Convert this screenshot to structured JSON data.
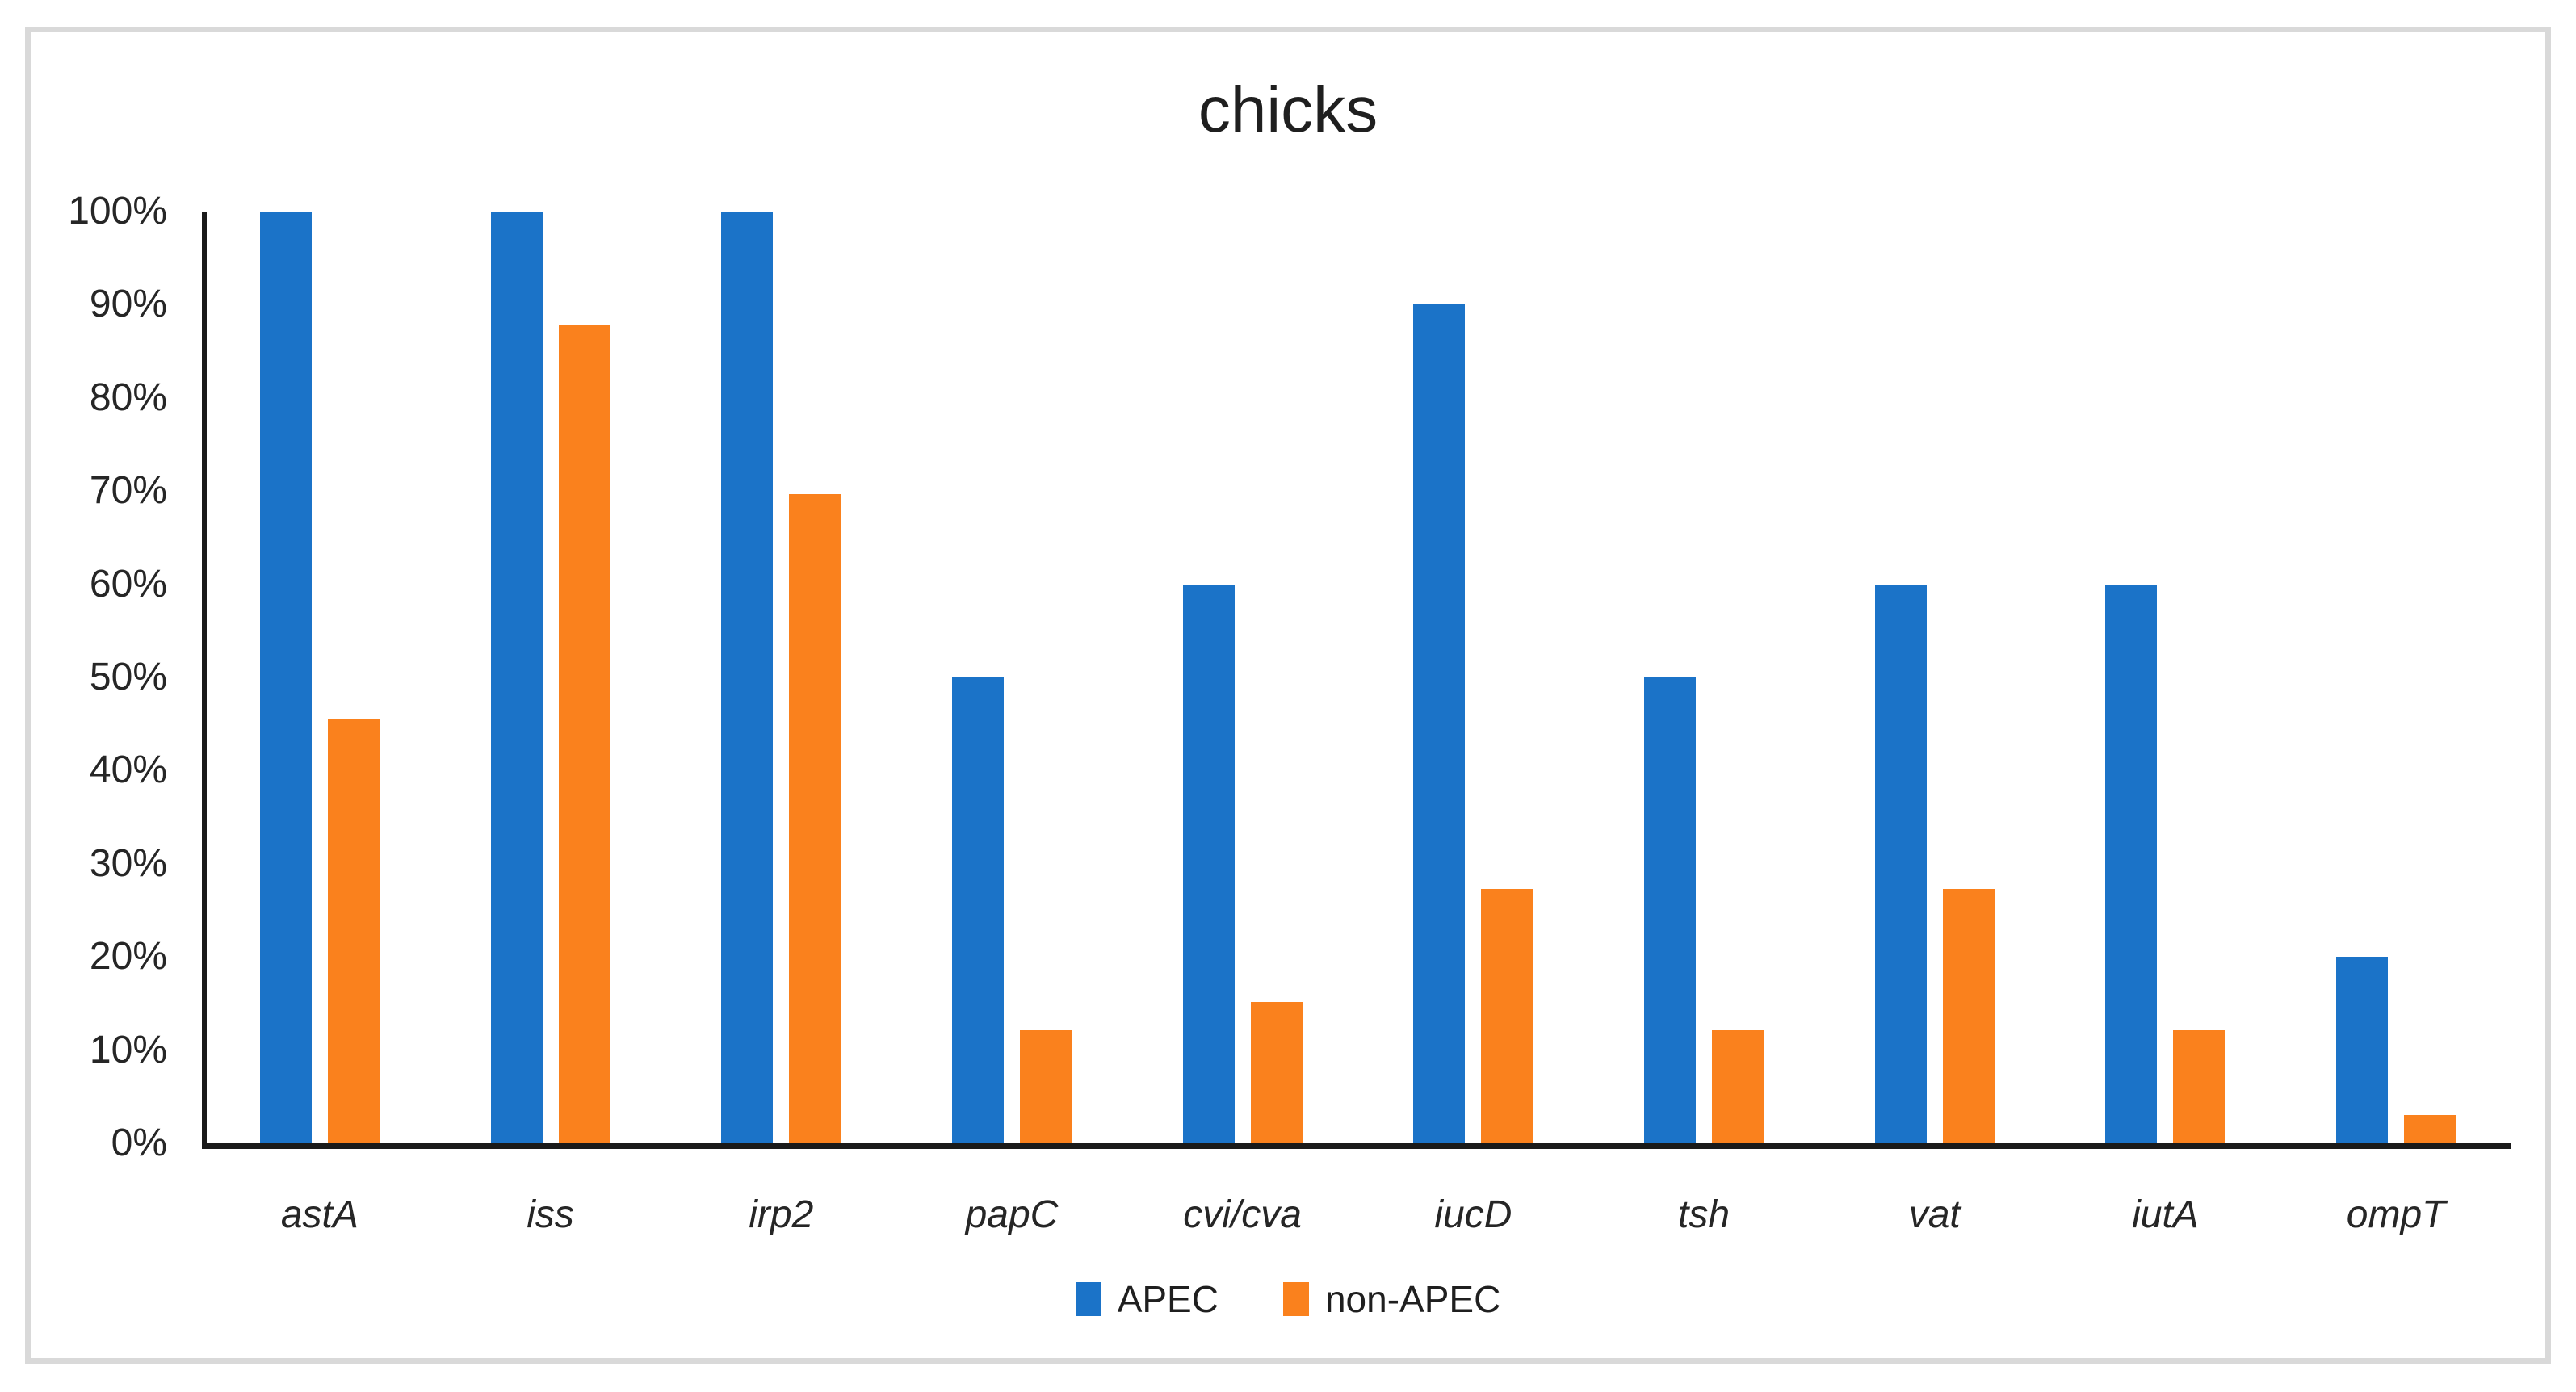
{
  "figure": {
    "title": "chicks",
    "background_color": "#FFFFFF",
    "frame_border_color": "#D9D9D9",
    "axis_line_color": "#1A1A1A",
    "text_color": "#262626"
  },
  "legend": {
    "items": [
      {
        "label": "APEC",
        "color": "#1B73C8"
      },
      {
        "label": "non-APEC",
        "color": "#FA811D"
      }
    ]
  },
  "chart_data": {
    "type": "bar",
    "title": "chicks",
    "categories": [
      "astA",
      "iss",
      "irp2",
      "papC",
      "cvi/cva",
      "iucD",
      "tsh",
      "vat",
      "iutA",
      "ompT"
    ],
    "series": [
      {
        "name": "APEC",
        "color": "#1B73C8",
        "values": [
          100,
          100,
          100,
          50,
          60,
          90,
          50,
          60,
          60,
          20
        ]
      },
      {
        "name": "non-APEC",
        "color": "#FA811D",
        "values": [
          45.5,
          87.9,
          69.7,
          12.1,
          15.2,
          27.3,
          12.1,
          27.3,
          12.1,
          3.0
        ]
      }
    ],
    "xlabel": "",
    "ylabel": "",
    "ylim": [
      0,
      100
    ],
    "yticks": [
      "0%",
      "10%",
      "20%",
      "30%",
      "40%",
      "50%",
      "60%",
      "70%",
      "80%",
      "90%",
      "100%"
    ],
    "grid": false,
    "legend_position": "bottom",
    "category_label_style": "italic"
  }
}
